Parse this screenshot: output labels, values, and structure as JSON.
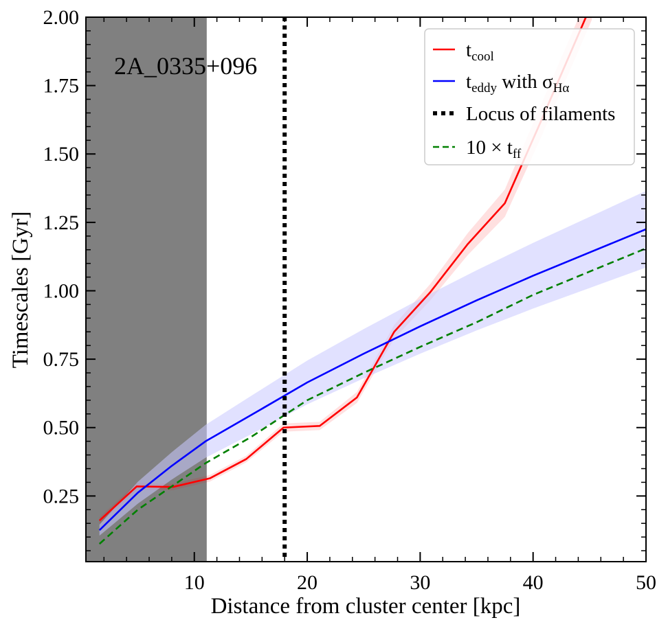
{
  "chart_data": {
    "type": "line",
    "annotation": "2A_0335+096",
    "xlabel": "Distance from cluster center [kpc]",
    "ylabel": "Timescales [Gyr]",
    "xlim": [
      0.4,
      50
    ],
    "ylim": [
      0.01,
      2.0
    ],
    "xticks": [
      10,
      20,
      30,
      40,
      50
    ],
    "xtick_labels": [
      "10",
      "20",
      "30",
      "40",
      "50"
    ],
    "yticks": [
      0.25,
      0.5,
      0.75,
      1.0,
      1.25,
      1.5,
      1.75,
      2.0
    ],
    "ytick_labels": [
      "0.25",
      "0.50",
      "0.75",
      "1.00",
      "1.25",
      "1.50",
      "1.75",
      "2.00"
    ],
    "grid": false,
    "legend_position": "top-right",
    "excluded_region": {
      "x_from": 0.4,
      "x_to": 11.1,
      "color": "#808080"
    },
    "filament_locus_x": 18.0,
    "series": [
      {
        "legend_main": "t",
        "legend_sub": "cool",
        "legend_suffix": "",
        "color": "#ff0000",
        "style": "solid",
        "x": [
          1.6,
          4.9,
          8.1,
          11.4,
          14.6,
          17.9,
          21.1,
          24.4,
          27.7,
          30.9,
          34.2,
          37.5,
          40.7,
          45.2
        ],
        "y": [
          0.16,
          0.285,
          0.283,
          0.315,
          0.385,
          0.5,
          0.506,
          0.61,
          0.85,
          0.995,
          1.17,
          1.32,
          1.62,
          2.05
        ],
        "band_half_width": [
          0.012,
          0.012,
          0.012,
          0.012,
          0.012,
          0.015,
          0.015,
          0.02,
          0.025,
          0.03,
          0.04,
          0.05,
          0.06,
          0.06
        ]
      },
      {
        "legend_main": "t",
        "legend_sub": "eddy",
        "legend_suffix": " with σ",
        "legend_suffix_sub": "Hα",
        "color": "#0000ff",
        "style": "solid",
        "x": [
          1.6,
          5.0,
          8.0,
          11.0,
          15.0,
          20.0,
          25.0,
          30.0,
          35.0,
          40.0,
          45.0,
          50.0
        ],
        "y": [
          0.125,
          0.262,
          0.36,
          0.45,
          0.545,
          0.665,
          0.77,
          0.87,
          0.965,
          1.055,
          1.14,
          1.225
        ],
        "band_half_width": [
          0.02,
          0.04,
          0.05,
          0.06,
          0.07,
          0.08,
          0.09,
          0.1,
          0.11,
          0.12,
          0.13,
          0.14
        ],
        "band_color": "#c8c8ff"
      },
      {
        "legend_main": "Locus of filaments",
        "color": "#000000",
        "style": "dotted"
      },
      {
        "legend_main": "10 × t",
        "legend_sub": "ff",
        "legend_suffix": "",
        "color": "#008000",
        "style": "dashed",
        "x": [
          1.6,
          5.0,
          8.0,
          11.0,
          15.0,
          20.0,
          25.0,
          30.0,
          35.0,
          40.0,
          45.0,
          50.0
        ],
        "y": [
          0.075,
          0.2,
          0.285,
          0.37,
          0.465,
          0.6,
          0.7,
          0.795,
          0.885,
          0.985,
          1.07,
          1.155
        ]
      }
    ]
  }
}
